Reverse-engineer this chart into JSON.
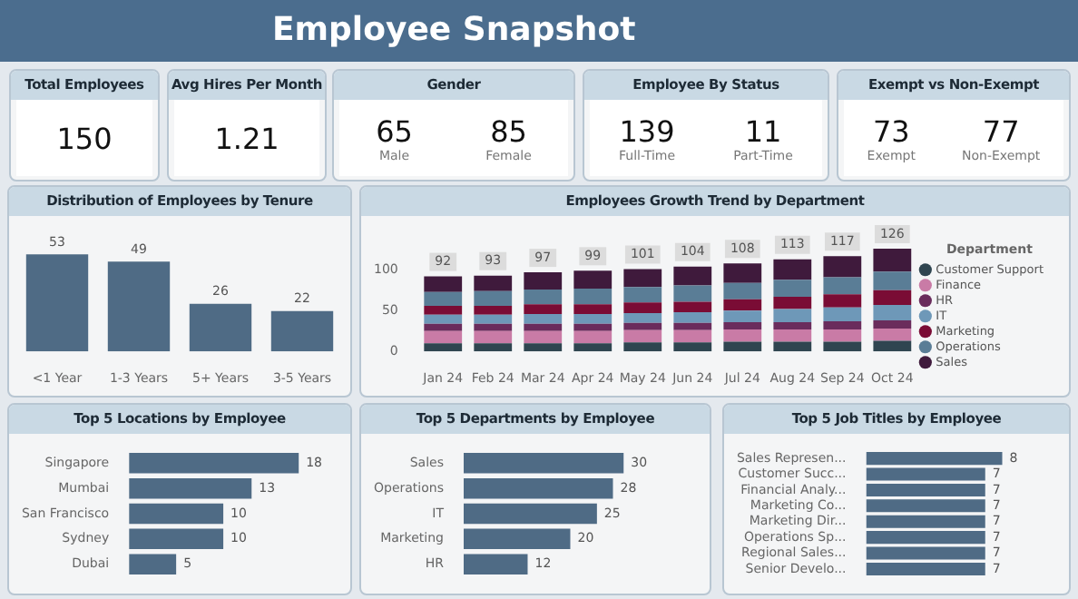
{
  "chart_data": [
    {
      "type": "other",
      "title": "Employee Snapshot"
    },
    {
      "type": "other",
      "title": "Total Employees",
      "categories": [
        null
      ],
      "values": [
        150
      ],
      "data_labels": true
    },
    {
      "type": "other",
      "title": "Avg Hires Per Month",
      "categories": [
        null
      ],
      "values": [
        1.21
      ],
      "data_labels": true
    },
    {
      "type": "other",
      "title": "Gender",
      "categories": [
        "Male",
        "Female"
      ],
      "values": [
        65,
        85
      ],
      "data_labels": true
    },
    {
      "type": "other",
      "title": "Employee By Status",
      "categories": [
        "Full-Time",
        "Part-Time"
      ],
      "values": [
        139,
        11
      ],
      "data_labels": true
    },
    {
      "type": "other",
      "title": "Exempt vs Non-Exempt",
      "categories": [
        "Exempt",
        "Non-Exempt"
      ],
      "values": [
        73,
        77
      ],
      "data_labels": true
    },
    {
      "type": "bar",
      "title": "Distribution of Employees by Tenure",
      "categories": [
        "<1 Year",
        "1-3 Years",
        "5+ Years",
        "3-5 Years"
      ],
      "values": [
        53,
        49,
        26,
        22
      ],
      "color": "#4f6b85",
      "data_labels": true
    },
    {
      "type": "bar",
      "title": "Employees Growth Trend by Department",
      "categories": [
        "Jan 24",
        "Feb 24",
        "Mar 24",
        "Apr 24",
        "May 24",
        "Jun 24",
        "Jul 24",
        "Aug 24",
        "Sep 24",
        "Oct 24"
      ],
      "stacked": true,
      "ylim": [
        0,
        135
      ],
      "yticks": [
        0,
        50,
        100
      ],
      "legend": "right",
      "legend_title": "Department",
      "totals": [
        "92",
        "93",
        "97",
        "99",
        "101",
        "104",
        "108",
        "113",
        "117",
        "126"
      ],
      "series": [
        {
          "name": "Customer Support",
          "color": "#2f4550",
          "values": [
            10,
            10,
            10,
            10,
            11,
            11,
            12,
            12,
            12,
            13
          ]
        },
        {
          "name": "Finance",
          "color": "#c97ba6",
          "values": [
            15,
            15,
            15,
            15,
            15,
            15,
            15,
            15,
            15,
            15
          ]
        },
        {
          "name": "HR",
          "color": "#6a2c5c",
          "values": [
            9,
            9,
            9,
            9,
            9,
            9,
            9,
            9,
            10,
            10
          ]
        },
        {
          "name": "IT",
          "color": "#6e98b8",
          "values": [
            11,
            11,
            12,
            12,
            12,
            13,
            14,
            16,
            17,
            19
          ]
        },
        {
          "name": "Marketing",
          "color": "#7a0c35",
          "values": [
            11,
            11,
            12,
            12,
            13,
            13,
            14,
            15,
            16,
            18
          ]
        },
        {
          "name": "Operations",
          "color": "#5a7d96",
          "values": [
            17,
            18,
            18,
            19,
            19,
            20,
            20,
            21,
            21,
            23
          ]
        },
        {
          "name": "Sales",
          "color": "#3f1a3c",
          "values": [
            19,
            19,
            21,
            22,
            22,
            23,
            24,
            25,
            26,
            28
          ]
        }
      ]
    },
    {
      "type": "bar",
      "title": "Top 5 Locations by Employee",
      "orientation": "horizontal",
      "categories": [
        "Singapore",
        "Mumbai",
        "San Francisco",
        "Sydney",
        "Dubai"
      ],
      "values": [
        18,
        13,
        10,
        10,
        5
      ],
      "color": "#4f6b85",
      "data_labels": true
    },
    {
      "type": "bar",
      "title": "Top 5 Departments by Employee",
      "orientation": "horizontal",
      "categories": [
        "Sales",
        "Operations",
        "IT",
        "Marketing",
        "HR"
      ],
      "values": [
        30,
        28,
        25,
        20,
        12
      ],
      "color": "#4f6b85",
      "data_labels": true
    },
    {
      "type": "bar",
      "title": "Top 5 Job Titles by Employee",
      "orientation": "horizontal",
      "categories": [
        "Sales Represen...",
        "Customer Succ...",
        "Financial Analy...",
        "Marketing Co...",
        "Marketing Dir...",
        "Operations Sp...",
        "Regional Sales...",
        "Senior Develo..."
      ],
      "values": [
        8,
        7,
        7,
        7,
        7,
        7,
        7,
        7
      ],
      "color": "#4f6b85",
      "data_labels": true
    }
  ]
}
